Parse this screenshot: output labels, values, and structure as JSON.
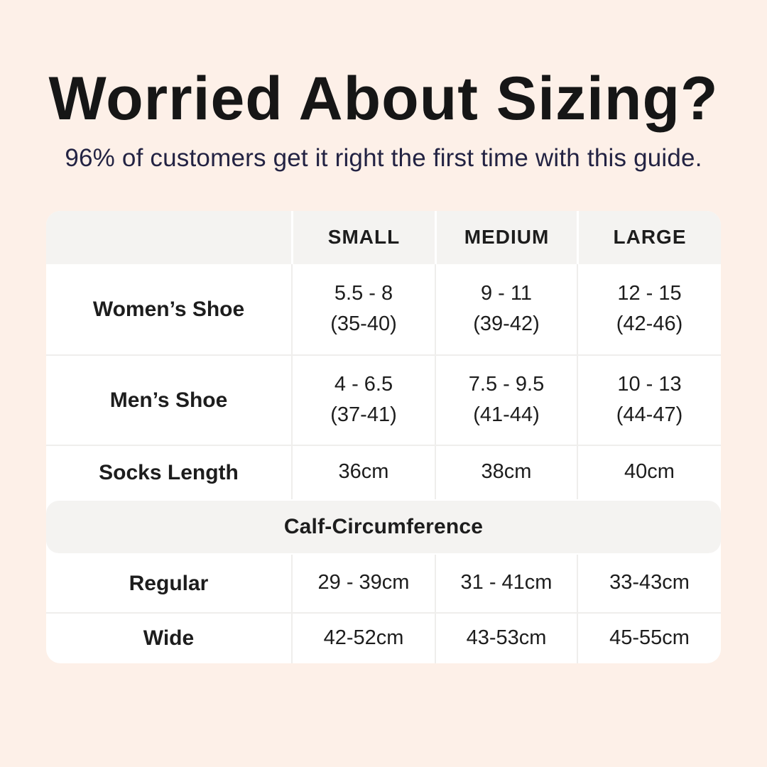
{
  "colors": {
    "background": "#fdf0e8",
    "card": "#ffffff",
    "header_fill": "#f4f3f1",
    "divider": "#efeeec",
    "title_text": "#161616",
    "subtitle_text": "#232343",
    "table_text": "#1d1d1d"
  },
  "chart_data": {
    "type": "table",
    "title": "Worried About Sizing?",
    "subtitle": "96% of customers get it right the first time with this guide.",
    "column_headers": [
      "SMALL",
      "MEDIUM",
      "LARGE"
    ],
    "rows": [
      {
        "label": "Women’s Shoe",
        "values": [
          {
            "main": "5.5 - 8",
            "sub": "(35-40)"
          },
          {
            "main": "9 - 11",
            "sub": "(39-42)"
          },
          {
            "main": "12 - 15",
            "sub": "(42-46)"
          }
        ]
      },
      {
        "label": "Men’s Shoe",
        "values": [
          {
            "main": "4 - 6.5",
            "sub": "(37-41)"
          },
          {
            "main": "7.5 - 9.5",
            "sub": "(41-44)"
          },
          {
            "main": "10 - 13",
            "sub": "(44-47)"
          }
        ]
      },
      {
        "label": "Socks Length",
        "values": [
          {
            "main": "36cm"
          },
          {
            "main": "38cm"
          },
          {
            "main": "40cm"
          }
        ]
      }
    ],
    "section_header": "Calf-Circumference",
    "section_rows": [
      {
        "label": "Regular",
        "values": [
          {
            "main": "29 - 39cm"
          },
          {
            "main": "31 - 41cm"
          },
          {
            "main": "33-43cm"
          }
        ]
      },
      {
        "label": "Wide",
        "values": [
          {
            "main": "42-52cm"
          },
          {
            "main": "43-53cm"
          },
          {
            "main": "45-55cm"
          }
        ]
      }
    ]
  }
}
